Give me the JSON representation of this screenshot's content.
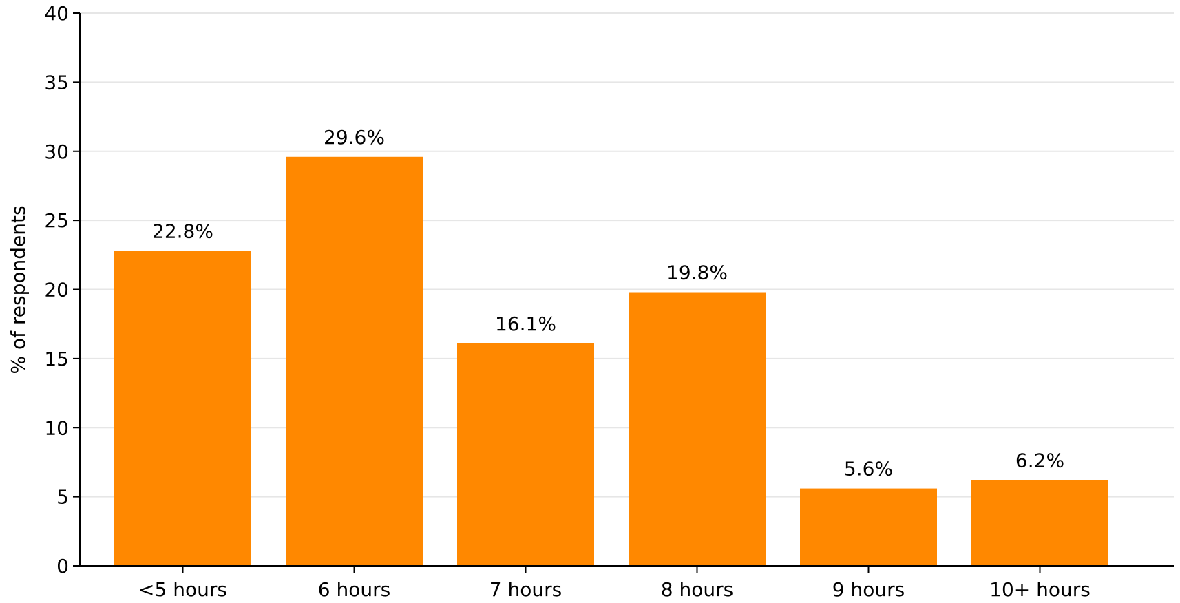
{
  "chart_data": {
    "type": "bar",
    "title": "",
    "xlabel": "",
    "ylabel": "% of respondents",
    "categories": [
      "<5 hours",
      "6 hours",
      "7 hours",
      "8 hours",
      "9 hours",
      "10+ hours"
    ],
    "values": [
      22.8,
      29.6,
      16.1,
      19.8,
      5.6,
      6.2
    ],
    "value_labels": [
      "22.8%",
      "29.6%",
      "16.1%",
      "19.8%",
      "5.6%",
      "6.2%"
    ],
    "ylim": [
      0,
      40
    ],
    "yticks": [
      0,
      5,
      10,
      15,
      20,
      25,
      30,
      35,
      40
    ],
    "grid": "horizontal",
    "legend": "none"
  },
  "colors": {
    "bar": "#ff8800",
    "grid": "#e6e6e6",
    "axis": "#000000"
  }
}
